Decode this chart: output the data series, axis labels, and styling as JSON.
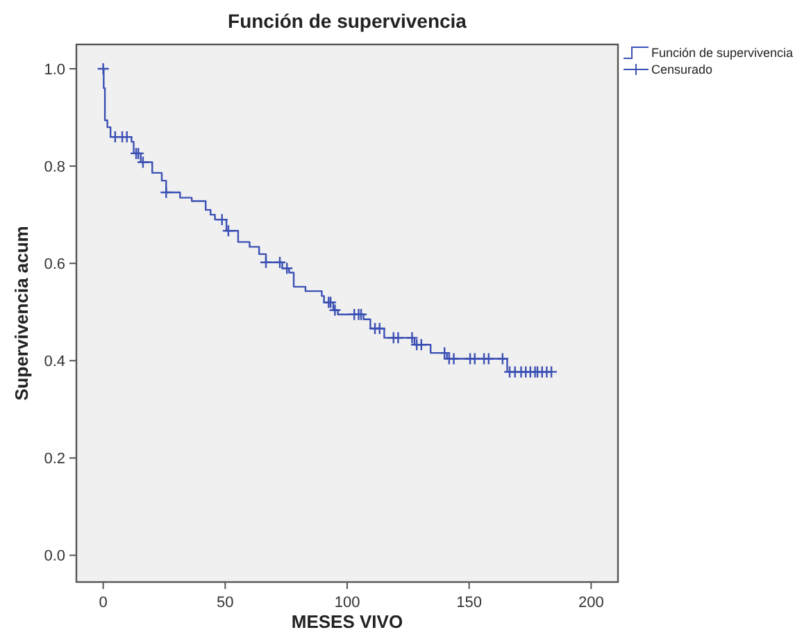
{
  "chart_data": {
    "type": "step",
    "title": "Función de supervivencia",
    "xlabel": "MESES VIVO",
    "ylabel": "Supervivencia acum",
    "xlim": [
      -11,
      211
    ],
    "xticks": [
      0,
      50,
      100,
      150,
      200
    ],
    "ylim": [
      -0.055,
      1.05
    ],
    "yticks": [
      {
        "value": 0,
        "label": "0.0"
      },
      {
        "value": 0.2,
        "label": "0.2"
      },
      {
        "value": 0.4,
        "label": "0.4"
      },
      {
        "value": 0.6,
        "label": "0.6"
      },
      {
        "value": 0.8,
        "label": "0.8"
      },
      {
        "value": 1,
        "label": "1.0"
      }
    ],
    "grid": false,
    "legend": "top right",
    "series": [
      {
        "name": "Función de supervivencia",
        "type": "step",
        "color": "#3b50b4",
        "line_style": "solid",
        "x": [
          0,
          0.2,
          0.7,
          1.7,
          3.0,
          11.6,
          12.5,
          15.4,
          20.1,
          24,
          25.8,
          31.5,
          36.3,
          42,
          44,
          45.8,
          50.5,
          55.3,
          60,
          63.9,
          66.7,
          73.4,
          76.2,
          78.1,
          82.9,
          89.6,
          90.5,
          94.3,
          96.2,
          106.7,
          109.5,
          115.2,
          127.6,
          134.2,
          140.9,
          165.6,
          183.7
        ],
        "values": [
          1.0,
          0.96,
          0.894,
          0.88,
          0.86,
          0.85,
          0.826,
          0.808,
          0.786,
          0.77,
          0.746,
          0.735,
          0.728,
          0.71,
          0.7,
          0.69,
          0.667,
          0.644,
          0.634,
          0.619,
          0.602,
          0.59,
          0.581,
          0.552,
          0.543,
          0.533,
          0.52,
          0.504,
          0.495,
          0.485,
          0.466,
          0.447,
          0.433,
          0.416,
          0.404,
          0.377,
          0.377
        ]
      },
      {
        "name": "Censurado",
        "type": "scatter",
        "marker": "cross",
        "color": "#3b50b4",
        "x": [
          0,
          4.9,
          7.8,
          9.7,
          13.5,
          14.4,
          16.3,
          25.8,
          48.7,
          51.3,
          66.7,
          72.4,
          75.3,
          92.4,
          93.2,
          95,
          102.9,
          104.7,
          105.7,
          111.4,
          113.3,
          119,
          120.9,
          126.6,
          128.5,
          130.4,
          139.9,
          141.8,
          143.7,
          150.4,
          152.3,
          156.1,
          158,
          163.7,
          166.6,
          168.8,
          171.3,
          173.2,
          175.1,
          177,
          178,
          179.9,
          181.8,
          183.7
        ],
        "values": [
          1.0,
          0.86,
          0.86,
          0.86,
          0.826,
          0.826,
          0.808,
          0.746,
          0.69,
          0.667,
          0.602,
          0.602,
          0.59,
          0.52,
          0.52,
          0.504,
          0.495,
          0.495,
          0.495,
          0.466,
          0.466,
          0.447,
          0.447,
          0.447,
          0.433,
          0.433,
          0.416,
          0.404,
          0.404,
          0.404,
          0.404,
          0.404,
          0.404,
          0.404,
          0.377,
          0.377,
          0.377,
          0.377,
          0.377,
          0.377,
          0.377,
          0.377,
          0.377,
          0.377
        ]
      }
    ]
  }
}
